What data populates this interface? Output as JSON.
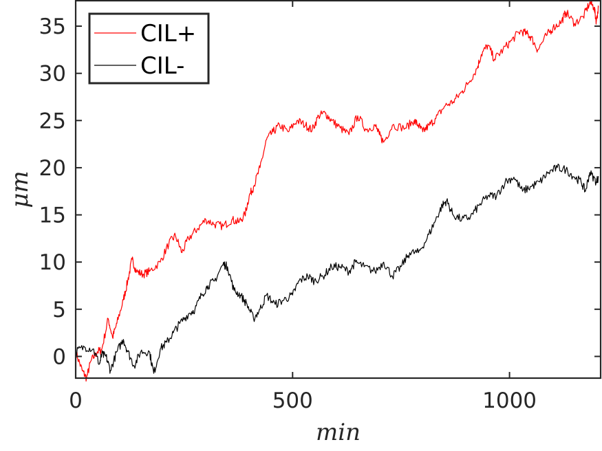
{
  "chart_data": {
    "type": "line",
    "title": "",
    "xlabel": "min",
    "ylabel": "μm",
    "xlim": [
      0,
      1210
    ],
    "ylim": [
      -2.3,
      37.7
    ],
    "xticks": [
      0,
      500,
      1000
    ],
    "xtick_labels": [
      "0",
      "500",
      "1000"
    ],
    "yticks": [
      0,
      5,
      10,
      15,
      20,
      25,
      30,
      35
    ],
    "ytick_labels": [
      "0",
      "5",
      "10",
      "15",
      "20",
      "25",
      "30",
      "35"
    ],
    "grid": false,
    "legend": {
      "placement": "top-left",
      "entries": [
        "CIL+",
        "CIL-"
      ]
    },
    "series": [
      {
        "name": "CIL+",
        "color": "#ff0000",
        "points": [
          [
            0,
            0.5
          ],
          [
            15,
            -1.5
          ],
          [
            25,
            -2.3
          ],
          [
            35,
            -0.5
          ],
          [
            50,
            0.5
          ],
          [
            60,
            0.7
          ],
          [
            75,
            4.0
          ],
          [
            85,
            2.0
          ],
          [
            95,
            3.5
          ],
          [
            110,
            6.0
          ],
          [
            120,
            8.0
          ],
          [
            130,
            10.3
          ],
          [
            140,
            9.0
          ],
          [
            155,
            8.7
          ],
          [
            170,
            9.0
          ],
          [
            195,
            10.0
          ],
          [
            215,
            12.0
          ],
          [
            230,
            12.8
          ],
          [
            245,
            11.0
          ],
          [
            260,
            12.5
          ],
          [
            280,
            13.5
          ],
          [
            300,
            14.5
          ],
          [
            320,
            14.0
          ],
          [
            340,
            13.8
          ],
          [
            360,
            14.5
          ],
          [
            375,
            14.2
          ],
          [
            390,
            15.0
          ],
          [
            400,
            17.0
          ],
          [
            410,
            18.0
          ],
          [
            425,
            20.0
          ],
          [
            440,
            23.0
          ],
          [
            455,
            23.8
          ],
          [
            470,
            24.5
          ],
          [
            490,
            23.8
          ],
          [
            510,
            25.0
          ],
          [
            530,
            24.5
          ],
          [
            545,
            24.0
          ],
          [
            560,
            25.5
          ],
          [
            575,
            25.8
          ],
          [
            590,
            25.0
          ],
          [
            610,
            24.2
          ],
          [
            630,
            23.5
          ],
          [
            650,
            25.5
          ],
          [
            670,
            24.0
          ],
          [
            690,
            24.5
          ],
          [
            700,
            23.5
          ],
          [
            710,
            22.7
          ],
          [
            730,
            24.5
          ],
          [
            760,
            24.2
          ],
          [
            780,
            25.0
          ],
          [
            790,
            24.5
          ],
          [
            800,
            23.8
          ],
          [
            815,
            24.5
          ],
          [
            830,
            25.2
          ],
          [
            850,
            26.5
          ],
          [
            870,
            27.0
          ],
          [
            890,
            28.0
          ],
          [
            905,
            29.0
          ],
          [
            925,
            30.5
          ],
          [
            935,
            32.0
          ],
          [
            950,
            33.0
          ],
          [
            965,
            31.5
          ],
          [
            985,
            32.5
          ],
          [
            1005,
            33.5
          ],
          [
            1025,
            34.5
          ],
          [
            1040,
            34.2
          ],
          [
            1050,
            33.8
          ],
          [
            1065,
            32.5
          ],
          [
            1085,
            34.0
          ],
          [
            1100,
            34.8
          ],
          [
            1120,
            35.5
          ],
          [
            1130,
            36.5
          ],
          [
            1150,
            35.3
          ],
          [
            1170,
            36.0
          ],
          [
            1185,
            37.5
          ],
          [
            1195,
            37.0
          ],
          [
            1200,
            35.5
          ],
          [
            1205,
            37.0
          ]
        ]
      },
      {
        "name": "CIL-",
        "color": "#000000",
        "points": [
          [
            0,
            0.5
          ],
          [
            20,
            1.0
          ],
          [
            40,
            0.8
          ],
          [
            55,
            -0.8
          ],
          [
            60,
            0.2
          ],
          [
            70,
            0.0
          ],
          [
            80,
            -1.5
          ],
          [
            95,
            0.5
          ],
          [
            110,
            1.8
          ],
          [
            120,
            0.5
          ],
          [
            135,
            -1.0
          ],
          [
            150,
            0.5
          ],
          [
            170,
            0.5
          ],
          [
            180,
            -1.8
          ],
          [
            195,
            0.8
          ],
          [
            210,
            1.5
          ],
          [
            225,
            2.5
          ],
          [
            240,
            3.5
          ],
          [
            260,
            4.5
          ],
          [
            275,
            5.0
          ],
          [
            290,
            6.5
          ],
          [
            305,
            7.5
          ],
          [
            320,
            8.0
          ],
          [
            340,
            9.8
          ],
          [
            350,
            9.5
          ],
          [
            365,
            7.0
          ],
          [
            380,
            6.5
          ],
          [
            395,
            5.5
          ],
          [
            410,
            4.0
          ],
          [
            425,
            5.0
          ],
          [
            440,
            6.5
          ],
          [
            460,
            5.5
          ],
          [
            480,
            6.0
          ],
          [
            500,
            6.5
          ],
          [
            515,
            8.0
          ],
          [
            535,
            8.5
          ],
          [
            550,
            8.0
          ],
          [
            570,
            8.5
          ],
          [
            590,
            9.5
          ],
          [
            610,
            9.5
          ],
          [
            630,
            9.0
          ],
          [
            645,
            10.0
          ],
          [
            665,
            9.5
          ],
          [
            690,
            9.0
          ],
          [
            710,
            10.0
          ],
          [
            730,
            8.5
          ],
          [
            750,
            9.5
          ],
          [
            770,
            11.0
          ],
          [
            790,
            11.0
          ],
          [
            810,
            12.5
          ],
          [
            830,
            14.5
          ],
          [
            845,
            16.0
          ],
          [
            855,
            16.5
          ],
          [
            870,
            15.0
          ],
          [
            890,
            14.5
          ],
          [
            910,
            14.8
          ],
          [
            930,
            16.0
          ],
          [
            950,
            17.0
          ],
          [
            970,
            17.0
          ],
          [
            990,
            18.5
          ],
          [
            1010,
            19.0
          ],
          [
            1030,
            17.5
          ],
          [
            1050,
            18.0
          ],
          [
            1070,
            18.5
          ],
          [
            1090,
            19.5
          ],
          [
            1110,
            20.0
          ],
          [
            1130,
            19.8
          ],
          [
            1150,
            19.0
          ],
          [
            1165,
            18.5
          ],
          [
            1175,
            17.5
          ],
          [
            1185,
            19.5
          ],
          [
            1200,
            18.5
          ],
          [
            1205,
            19.0
          ]
        ]
      }
    ]
  }
}
